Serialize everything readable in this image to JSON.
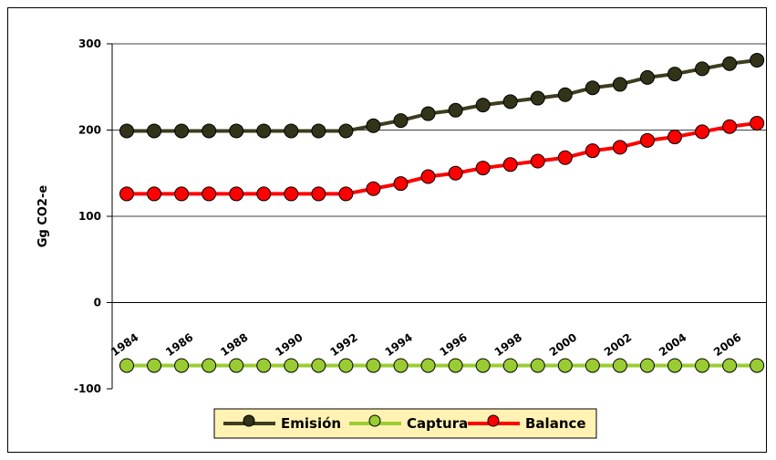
{
  "chart_data": {
    "type": "line",
    "title": "",
    "xlabel": "",
    "ylabel": "Gg CO2-e",
    "ylim": [
      -100,
      300
    ],
    "yticks": [
      -100,
      0,
      100,
      200,
      300
    ],
    "x": [
      1984,
      1985,
      1986,
      1987,
      1988,
      1989,
      1990,
      1991,
      1992,
      1993,
      1994,
      1995,
      1996,
      1997,
      1998,
      1999,
      2000,
      2001,
      2002,
      2003,
      2004,
      2005,
      2006,
      2007
    ],
    "xtick_labels": [
      "1984",
      "1986",
      "1988",
      "1990",
      "1992",
      "1994",
      "1996",
      "1998",
      "2000",
      "2002",
      "2004",
      "2006"
    ],
    "grid": "horizontal major gridlines",
    "legend_position": "bottom",
    "series": [
      {
        "name": "Emisión",
        "color": "#3d3d1f",
        "marker_color": "#33331a",
        "values": [
          199,
          199,
          199,
          199,
          199,
          199,
          199,
          199,
          199,
          205,
          211,
          219,
          223,
          229,
          233,
          237,
          241,
          249,
          253,
          261,
          265,
          271,
          277,
          281
        ]
      },
      {
        "name": "Captura",
        "color": "#9acd32",
        "marker_color": "#99cc33",
        "values": [
          -73,
          -73,
          -73,
          -73,
          -73,
          -73,
          -73,
          -73,
          -73,
          -73,
          -73,
          -73,
          -73,
          -73,
          -73,
          -73,
          -73,
          -73,
          -73,
          -73,
          -73,
          -73,
          -73,
          -73
        ]
      },
      {
        "name": "Balance",
        "color": "#ff0000",
        "marker_color": "#ff0000",
        "values": [
          126,
          126,
          126,
          126,
          126,
          126,
          126,
          126,
          126,
          132,
          138,
          146,
          150,
          156,
          160,
          164,
          168,
          176,
          180,
          188,
          192,
          198,
          204,
          208
        ]
      }
    ]
  },
  "legend": {
    "background": "#fff2b3"
  }
}
